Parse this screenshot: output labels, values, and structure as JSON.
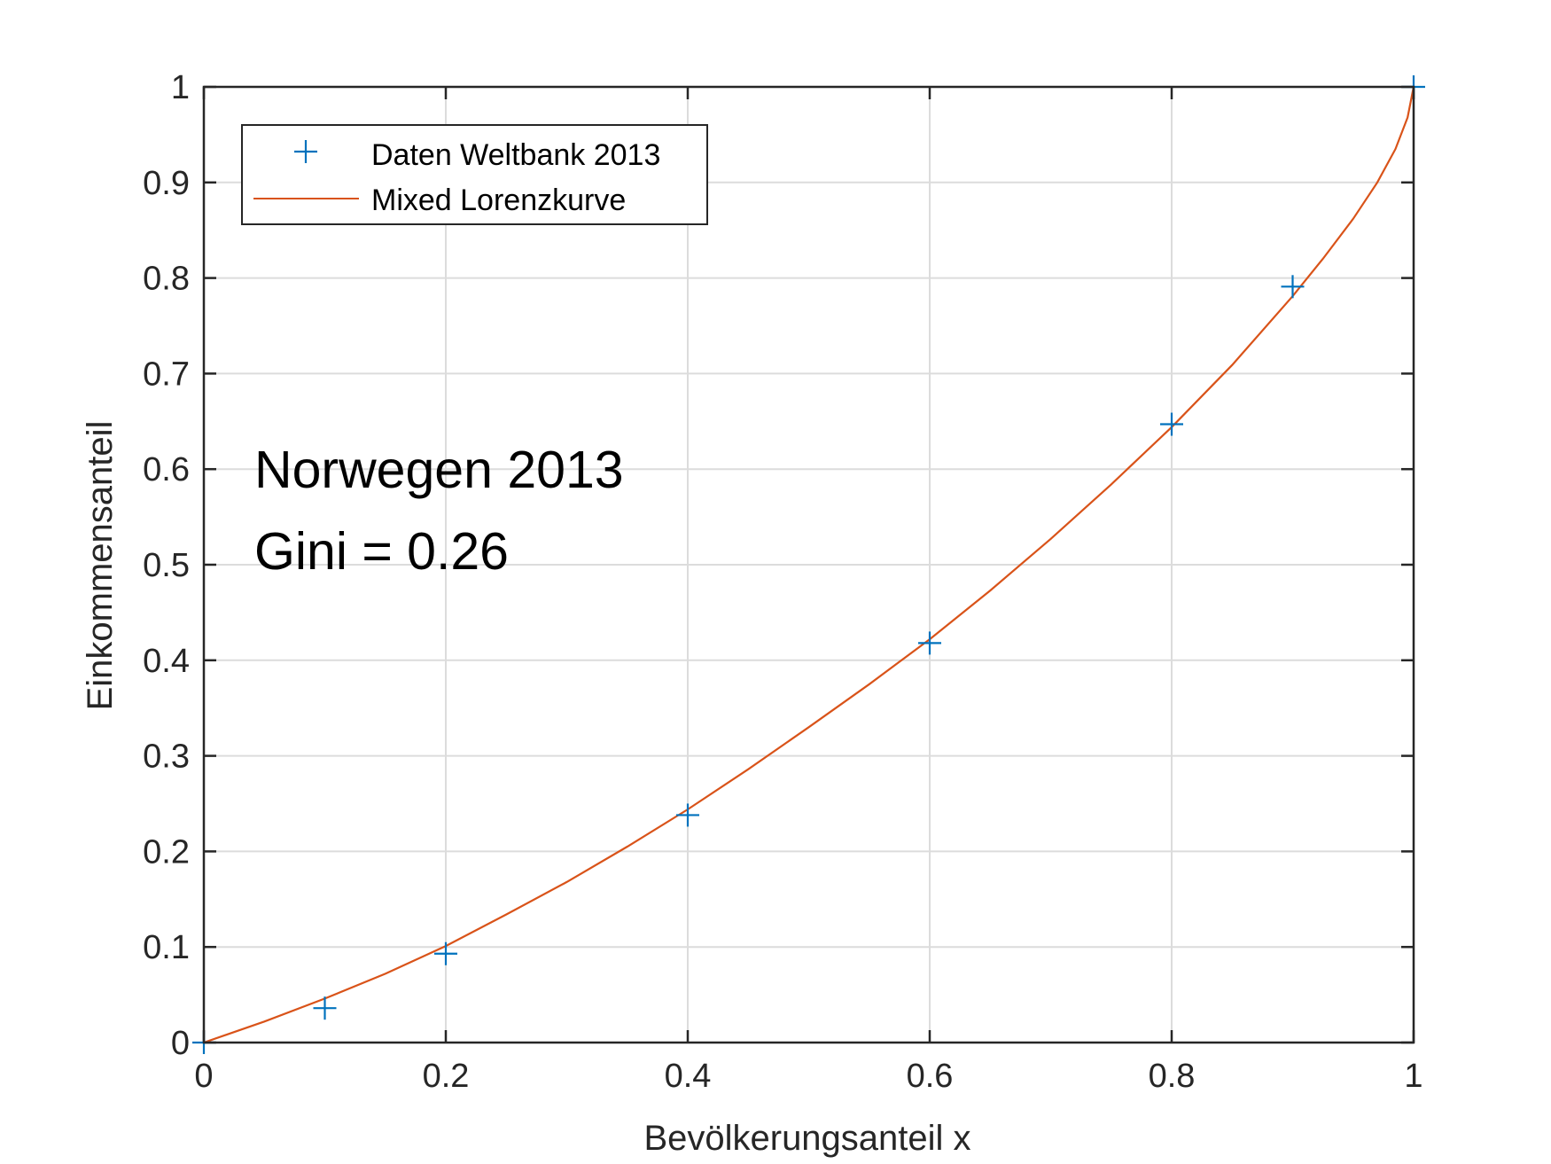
{
  "chart_data": {
    "type": "line",
    "xlabel": "Bevölkerungsanteil x",
    "ylabel": "Einkommensanteil",
    "xlim": [
      0,
      1
    ],
    "ylim": [
      0,
      1
    ],
    "xticks": [
      "0",
      "0.2",
      "0.4",
      "0.6",
      "0.8",
      "1"
    ],
    "yticks": [
      "0",
      "0.1",
      "0.2",
      "0.3",
      "0.4",
      "0.5",
      "0.6",
      "0.7",
      "0.8",
      "0.9",
      "1"
    ],
    "grid": true,
    "legend_position": "top-left",
    "annotations": [
      "Norwegen 2013",
      "Gini = 0.26"
    ],
    "series": [
      {
        "name": "Daten Weltbank 2013",
        "style": "markers-plus",
        "color": "#0072BD",
        "x": [
          0,
          0.1,
          0.2,
          0.4,
          0.6,
          0.8,
          0.9,
          1
        ],
        "y": [
          0,
          0.036,
          0.093,
          0.238,
          0.418,
          0.647,
          0.791,
          1
        ]
      },
      {
        "name": "Mixed Lorenzkurve",
        "style": "line",
        "color": "#D95319",
        "x": [
          0,
          0.05,
          0.1,
          0.15,
          0.2,
          0.25,
          0.3,
          0.35,
          0.4,
          0.45,
          0.5,
          0.55,
          0.6,
          0.65,
          0.7,
          0.75,
          0.8,
          0.85,
          0.9,
          0.925,
          0.95,
          0.97,
          0.985,
          0.995,
          1
        ],
        "y": [
          0,
          0.022,
          0.046,
          0.072,
          0.101,
          0.134,
          0.168,
          0.205,
          0.244,
          0.286,
          0.33,
          0.375,
          0.422,
          0.473,
          0.527,
          0.584,
          0.644,
          0.709,
          0.781,
          0.82,
          0.862,
          0.9,
          0.935,
          0.968,
          1
        ]
      }
    ]
  }
}
